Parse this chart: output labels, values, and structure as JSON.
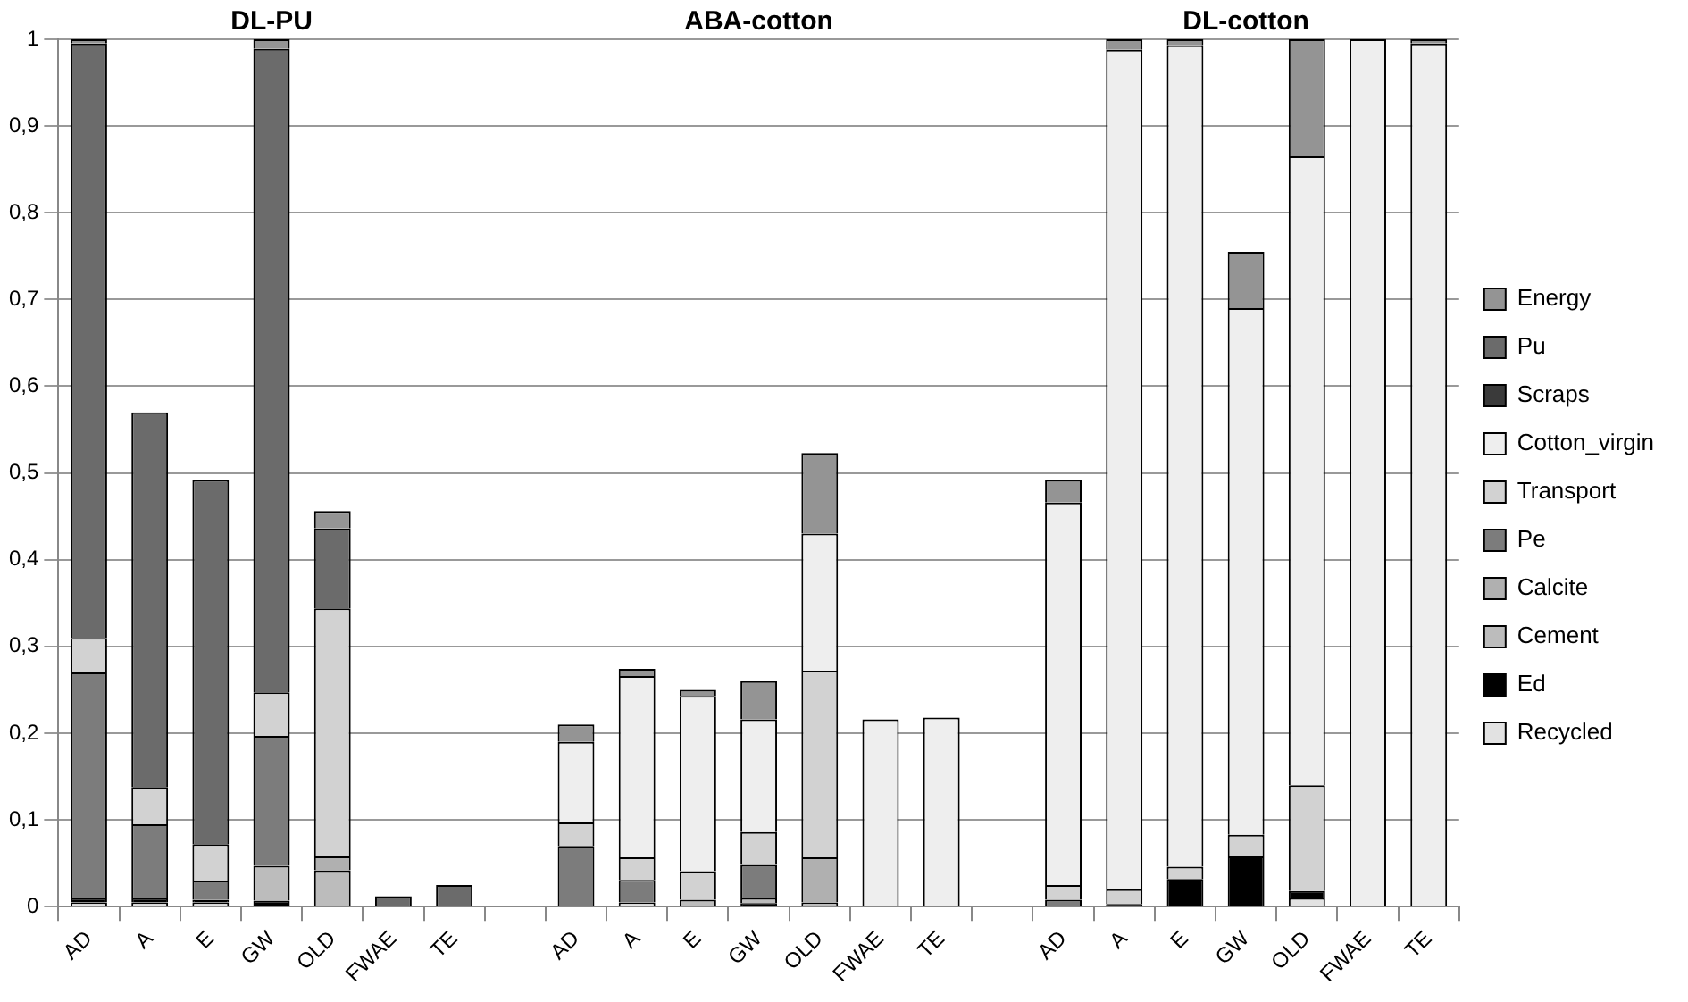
{
  "chart_data": {
    "type": "bar",
    "stacked": true,
    "grid": "y",
    "legend": "right",
    "annotations": [
      "DL-PU",
      "ABA-cotton",
      "DL-cotton"
    ],
    "categories": [
      "AD",
      "A",
      "E",
      "GW",
      "OLD",
      "FWAE",
      "TE",
      null,
      "AD",
      "A",
      "E",
      "GW",
      "OLD",
      "FWAE",
      "TE",
      null,
      "AD",
      "A",
      "E",
      "GW",
      "OLD",
      "FWAE",
      "TE"
    ],
    "ylim": [
      0,
      1
    ],
    "yticks": [
      0,
      {
        "value": 0.1,
        "label": "0,1"
      },
      {
        "value": 0.2,
        "label": "0,2"
      },
      {
        "value": 0.3,
        "label": "0,3"
      },
      {
        "value": 0.4,
        "label": "0,4"
      },
      {
        "value": 0.5,
        "label": "0,5"
      },
      {
        "value": 0.6,
        "label": "0,6"
      },
      {
        "value": 0.7,
        "label": "0,7"
      },
      {
        "value": 0.8,
        "label": "0,8"
      },
      {
        "value": 0.9,
        "label": "0,9"
      },
      1
    ],
    "series": [
      {
        "name": "Recycled",
        "color": "#e2e2e2",
        "values": [
          0.005,
          0.005,
          0.005,
          null,
          null,
          null,
          null,
          null,
          null,
          0.005,
          null,
          null,
          null,
          null,
          null,
          null,
          null,
          null,
          null,
          null,
          0.01,
          null,
          null
        ]
      },
      {
        "name": "Ed",
        "color": "#000000",
        "values": [
          0.005,
          0.005,
          0.003,
          0.007,
          null,
          null,
          null,
          null,
          null,
          null,
          null,
          0.004,
          null,
          null,
          null,
          null,
          null,
          0.003,
          0.032,
          0.058,
          0.008,
          null,
          null
        ]
      },
      {
        "name": "Cement",
        "color": "#bcbcbc",
        "values": [
          null,
          null,
          null,
          0.04,
          0.042,
          null,
          null,
          null,
          null,
          null,
          0.008,
          0.006,
          0.005,
          null,
          null,
          null,
          null,
          null,
          null,
          null,
          null,
          null,
          null
        ]
      },
      {
        "name": "Calcite",
        "color": "#b0b0b0",
        "values": [
          null,
          null,
          null,
          null,
          0.016,
          null,
          null,
          null,
          null,
          null,
          null,
          null,
          0.052,
          null,
          null,
          null,
          null,
          null,
          null,
          null,
          null,
          null,
          null
        ]
      },
      {
        "name": "Pe",
        "color": "#7c7c7c",
        "values": [
          0.26,
          0.085,
          0.022,
          0.15,
          null,
          null,
          null,
          null,
          0.07,
          0.026,
          null,
          0.038,
          null,
          null,
          null,
          null,
          0.008,
          null,
          null,
          null,
          null,
          null,
          null
        ]
      },
      {
        "name": "Transport",
        "color": "#d2d2d2",
        "values": [
          0.04,
          0.043,
          0.042,
          0.05,
          0.286,
          null,
          null,
          null,
          0.027,
          0.026,
          0.033,
          0.038,
          0.215,
          null,
          null,
          null,
          0.017,
          0.017,
          0.014,
          0.025,
          0.122,
          null,
          null
        ]
      },
      {
        "name": "Cotton_virgin",
        "color": "#eeeeee",
        "values": [
          null,
          null,
          null,
          null,
          null,
          null,
          null,
          null,
          0.093,
          0.209,
          0.202,
          0.13,
          0.158,
          0.216,
          0.218,
          null,
          0.441,
          0.968,
          0.947,
          0.607,
          0.725,
          1.0,
          0.995
        ]
      },
      {
        "name": "Scraps",
        "color": "#3a3a3a",
        "values": [
          null,
          null,
          null,
          null,
          null,
          null,
          null,
          null,
          null,
          null,
          null,
          null,
          null,
          null,
          null,
          null,
          null,
          null,
          null,
          null,
          null,
          null,
          null
        ]
      },
      {
        "name": "Pu",
        "color": "#6b6b6b",
        "values": [
          0.685,
          0.432,
          0.42,
          0.742,
          0.092,
          0.012,
          0.025,
          null,
          null,
          null,
          null,
          null,
          null,
          null,
          null,
          null,
          null,
          null,
          null,
          null,
          null,
          null,
          null
        ]
      },
      {
        "name": "Energy",
        "color": "#949494",
        "values": [
          0.005,
          null,
          null,
          0.011,
          0.02,
          null,
          null,
          null,
          0.02,
          0.008,
          0.007,
          0.044,
          0.093,
          null,
          null,
          null,
          0.026,
          0.012,
          0.007,
          0.065,
          0.135,
          null,
          0.005
        ]
      }
    ]
  }
}
